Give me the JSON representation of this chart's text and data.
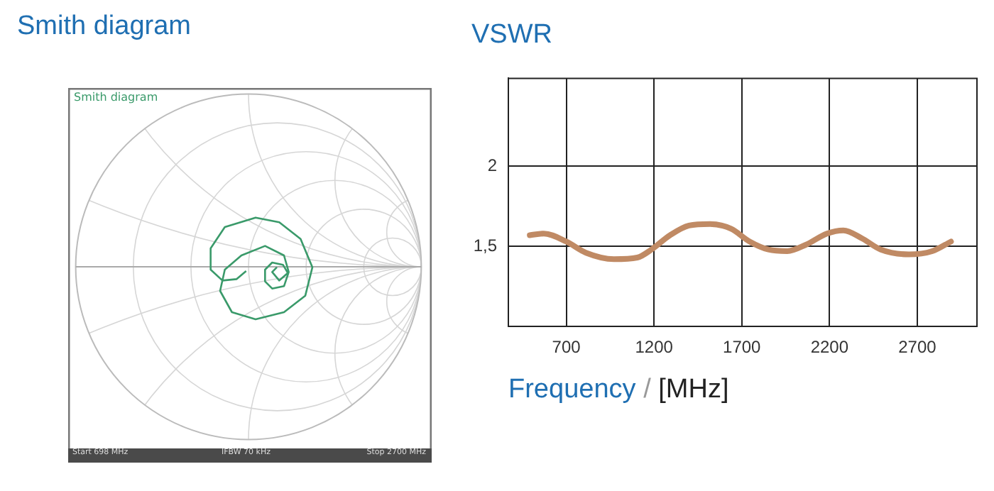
{
  "chart_data": [
    {
      "type": "other",
      "title": "Smith diagram",
      "annotations": [
        "Smith diagram",
        "Start 698 MHz",
        "IFBW 70 kHz",
        "Stop 2700 MHz"
      ]
    },
    {
      "type": "line",
      "title": "VSWR",
      "xlabel": "Frequency / [MHz]",
      "series": [
        {
          "color": "#c08a64",
          "x": [
            492,
            572,
            700,
            812,
            972,
            1105,
            1185,
            1292,
            1399,
            1519,
            1639,
            1745,
            1852,
            1959,
            2065,
            2185,
            2279,
            2385,
            2492,
            2652,
            2785,
            2892
          ],
          "values": [
            1.57,
            1.58,
            1.53,
            1.46,
            1.42,
            1.43,
            1.48,
            1.57,
            1.63,
            1.64,
            1.61,
            1.53,
            1.48,
            1.47,
            1.51,
            1.58,
            1.6,
            1.55,
            1.48,
            1.45,
            1.47,
            1.53
          ]
        }
      ],
      "xlim": [
        370,
        3040
      ],
      "xticks": [
        700,
        1200,
        1700,
        2200,
        2700
      ],
      "ylim": [
        1,
        2.55
      ],
      "yticks": [
        2,
        {
          "value": 1.5,
          "label": "1,5"
        }
      ],
      "grid": true,
      "legend": false,
      "marker": "none",
      "line_style": "solid"
    }
  ]
}
